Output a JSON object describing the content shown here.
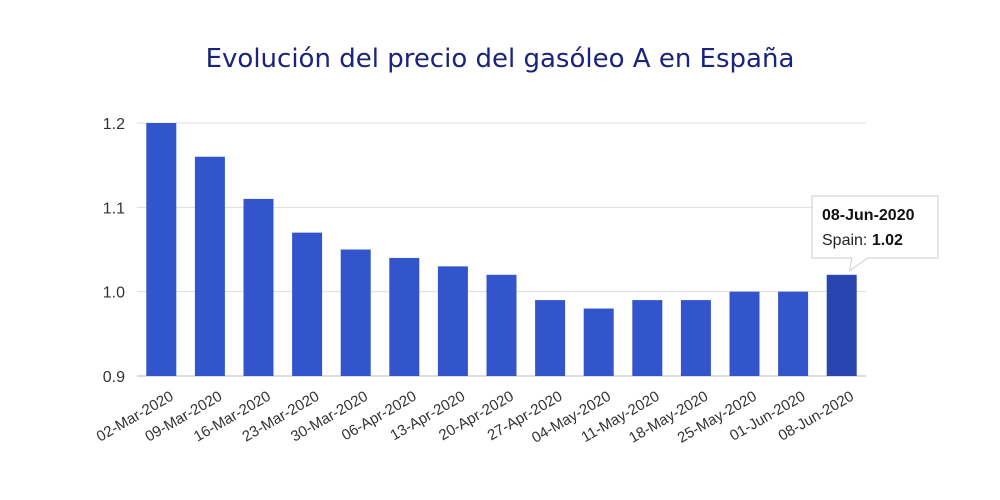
{
  "chart_data": {
    "type": "bar",
    "title": "Evolución del precio del gasóleo A en España",
    "xlabel": "",
    "ylabel": "",
    "ylim": [
      0.9,
      1.2
    ],
    "yticks": [
      "0.9",
      "1.0",
      "1.1",
      "1.2"
    ],
    "grid": true,
    "categories": [
      "02-Mar-2020",
      "09-Mar-2020",
      "16-Mar-2020",
      "23-Mar-2020",
      "30-Mar-2020",
      "06-Apr-2020",
      "13-Apr-2020",
      "20-Apr-2020",
      "27-Apr-2020",
      "04-May-2020",
      "11-May-2020",
      "18-May-2020",
      "25-May-2020",
      "01-Jun-2020",
      "08-Jun-2020"
    ],
    "series": [
      {
        "name": "Spain",
        "values": [
          1.2,
          1.16,
          1.11,
          1.07,
          1.05,
          1.04,
          1.03,
          1.02,
          0.99,
          0.98,
          0.99,
          0.99,
          1.0,
          1.0,
          1.02
        ]
      }
    ],
    "bar_color": "#3355cc",
    "highlight_color": "#2a44b0",
    "tooltip": {
      "date": "08-Jun-2020",
      "series_label": "Spain: ",
      "value": "1.02"
    }
  }
}
